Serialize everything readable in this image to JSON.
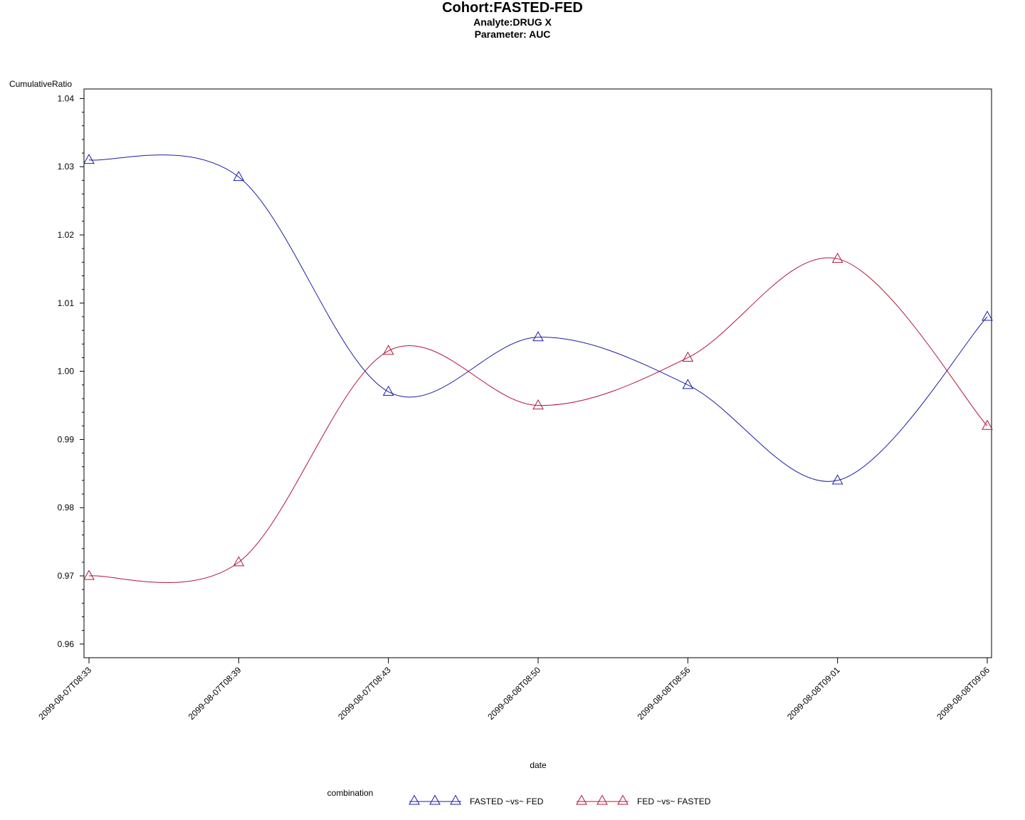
{
  "titles": {
    "title": "Cohort:FASTED-FED",
    "subtitle1": "Analyte:DRUG X",
    "subtitle2": "Parameter: AUC"
  },
  "legend": {
    "title": "combination"
  },
  "colors": {
    "series1": "#1c1ca8",
    "series2": "#b0163a",
    "axis": "#000000"
  },
  "chart_data": {
    "type": "line",
    "title": "Cohort:FASTED-FED",
    "xlabel": "date",
    "ylabel": "CumulativeRatio",
    "x": [
      "2099-08-07T08:33",
      "2099-08-07T08:39",
      "2099-08-07T08:43",
      "2099-08-08T08:50",
      "2099-08-08T08:56",
      "2099-08-08T09:01",
      "2099-08-08T09:06"
    ],
    "yticks": [
      "0.96",
      "0.97",
      "0.98",
      "0.99",
      "1.00",
      "1.01",
      "1.02",
      "1.03",
      "1.04"
    ],
    "ylim": [
      0.958,
      1.0414
    ],
    "grid": false,
    "legend_position": "bottom",
    "marker": "triangle",
    "series": [
      {
        "name": "FASTED ~vs~ FED",
        "values": [
          1.031,
          1.0285,
          0.997,
          1.005,
          0.998,
          0.984,
          1.008
        ]
      },
      {
        "name": "FED ~vs~ FASTED",
        "values": [
          0.97,
          0.972,
          1.003,
          0.995,
          1.002,
          1.0165,
          0.992
        ]
      }
    ]
  }
}
